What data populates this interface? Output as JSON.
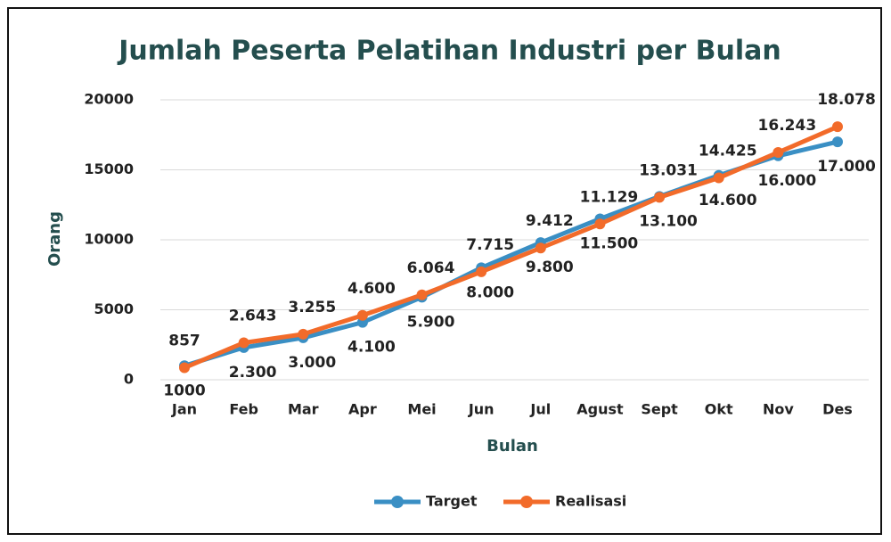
{
  "chart_data": {
    "type": "line",
    "title": "Jumlah Peserta Pelatihan Industri per Bulan",
    "xlabel": "Bulan",
    "ylabel": "Orang",
    "categories": [
      "Jan",
      "Feb",
      "Mar",
      "Apr",
      "Mei",
      "Jun",
      "Jul",
      "Agust",
      "Sept",
      "Okt",
      "Nov",
      "Des"
    ],
    "series": [
      {
        "name": "Target",
        "color": "#3a8fc4",
        "values": [
          1000,
          2300,
          3000,
          4100,
          5900,
          8000,
          9800,
          11500,
          13100,
          14600,
          16000,
          17000
        ],
        "value_labels": [
          "1000",
          "2.300",
          "3.000",
          "4.100",
          "5.900",
          "8.000",
          "9.800",
          "11.500",
          "13.100",
          "14.600",
          "16.000",
          "17.000"
        ]
      },
      {
        "name": "Realisasi",
        "color": "#f26b2a",
        "values": [
          857,
          2643,
          3255,
          4600,
          6064,
          7715,
          9412,
          11129,
          13031,
          14425,
          16243,
          18078
        ],
        "value_labels": [
          "857",
          "2.643",
          "3.255",
          "4.600",
          "6.064",
          "7.715",
          "9.412",
          "11.129",
          "13.031",
          "14.425",
          "16.243",
          "18.078"
        ]
      }
    ],
    "ylim": [
      0,
      20000
    ],
    "yticks": [
      0,
      5000,
      10000,
      15000,
      20000
    ],
    "grid": true,
    "legend": "bottom"
  }
}
